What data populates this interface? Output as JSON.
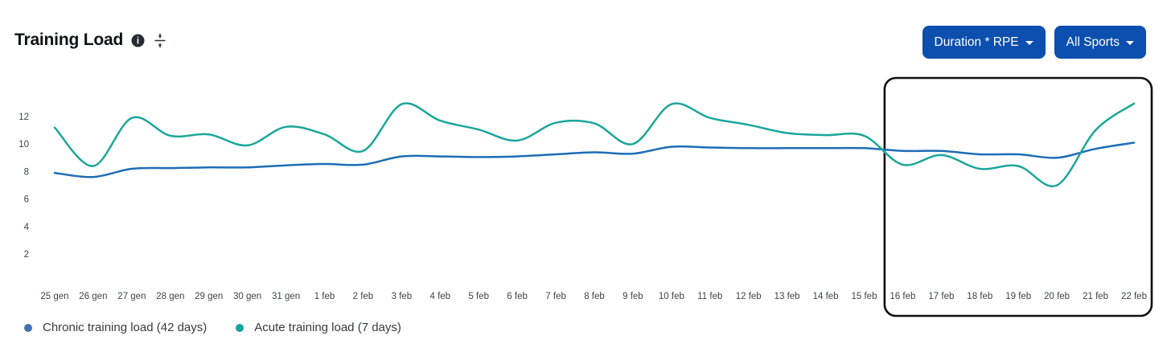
{
  "header": {
    "title": "Training Load",
    "icons": {
      "info": "info-icon",
      "collapse": "collapse-vertical-icon",
      "caret": "caret-down-icon"
    },
    "buttons": [
      {
        "label": "Duration * RPE",
        "caret": true
      },
      {
        "label": "All Sports",
        "caret": true
      }
    ]
  },
  "colors": {
    "button_bg": "#0c4fae",
    "chronic_line": "#1e6db6",
    "acute_line": "#1ba69b",
    "chronic_legend_dot": "#4670ae",
    "acute_legend_dot": "#10a3a0",
    "axis_text": "#3e434b",
    "highlight_border": "#101010"
  },
  "chart_data": {
    "type": "line",
    "x": [
      "25 gen",
      "26 gen",
      "27 gen",
      "28 gen",
      "29 gen",
      "30 gen",
      "31 gen",
      "1 feb",
      "2 feb",
      "3 feb",
      "4 feb",
      "5 feb",
      "6 feb",
      "7 feb",
      "8 feb",
      "9 feb",
      "10 feb",
      "11 feb",
      "12 feb",
      "13 feb",
      "14 feb",
      "15 feb",
      "16 feb",
      "17 feb",
      "18 feb",
      "19 feb",
      "20 feb",
      "21 feb",
      "22 feb"
    ],
    "series": [
      {
        "name": "Chronic training load (42 days)",
        "color": "#1e6db6",
        "values": [
          7.9,
          7.6,
          8.2,
          8.25,
          8.3,
          8.3,
          8.45,
          8.55,
          8.5,
          9.1,
          9.1,
          9.05,
          9.1,
          9.25,
          9.4,
          9.3,
          9.8,
          9.75,
          9.7,
          9.7,
          9.7,
          9.7,
          9.5,
          9.5,
          9.25,
          9.25,
          9.0,
          9.65,
          10.1
        ]
      },
      {
        "name": "Acute training load (7 days)",
        "color": "#1ba69b",
        "values": [
          11.2,
          8.4,
          11.9,
          10.6,
          10.7,
          9.9,
          11.25,
          10.7,
          9.5,
          12.9,
          11.7,
          11.05,
          10.25,
          11.55,
          11.5,
          10.0,
          12.9,
          11.9,
          11.4,
          10.8,
          10.65,
          10.6,
          8.5,
          9.2,
          8.2,
          8.4,
          7.0,
          11.0,
          12.95
        ]
      }
    ],
    "ylim": [
      0,
      14
    ],
    "yticks": [
      2,
      4,
      6,
      8,
      10,
      12
    ],
    "grid": false,
    "legend_position": "bottom",
    "highlight_region": {
      "from": "16 feb",
      "to": "22 feb"
    }
  },
  "legend": {
    "items": [
      {
        "label": "Chronic training load (42 days)",
        "color": "#4670ae"
      },
      {
        "label": "Acute training load (7 days)",
        "color": "#10a3a0"
      }
    ]
  }
}
